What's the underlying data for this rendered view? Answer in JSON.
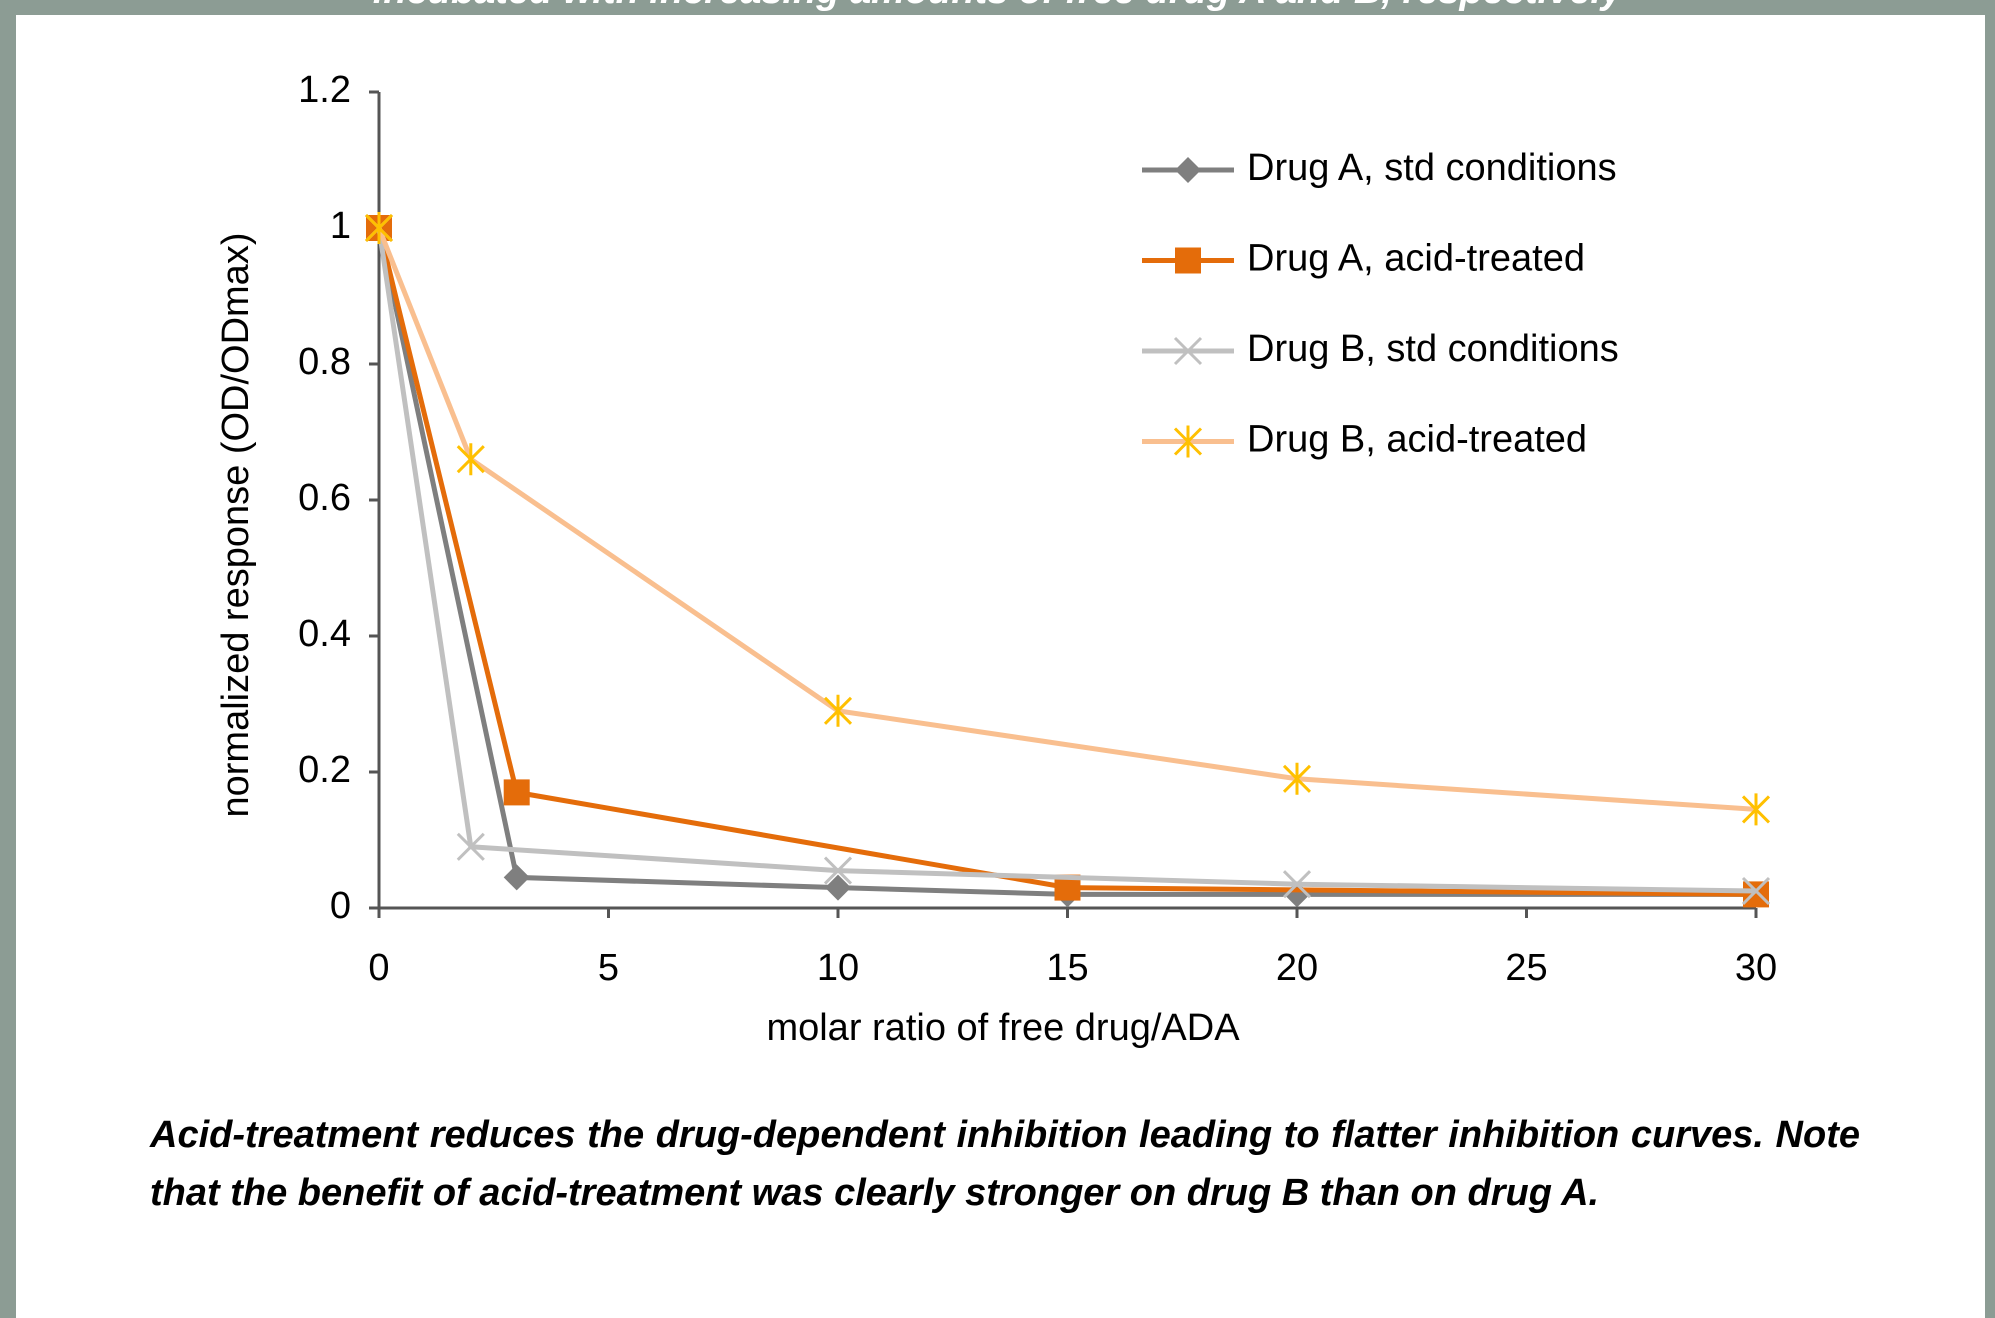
{
  "header": "incubated with increasing amounts of free drug A and B, respectively",
  "chart_data": {
    "type": "line",
    "xlabel": "molar ratio of free drug/ADA",
    "ylabel": "normalized response (OD/ODmax)",
    "xlim": [
      0,
      30
    ],
    "xticks": [
      0,
      5,
      10,
      15,
      20,
      25,
      30
    ],
    "ylim": [
      0,
      1.2
    ],
    "yticks": [
      0,
      0.2,
      0.4,
      0.6,
      0.8,
      1,
      1.2
    ],
    "legend": "upper right",
    "series": [
      {
        "name": "Drug A, std conditions",
        "color": "#7f7f7f",
        "marker": "diamond",
        "marker_color": "#7f7f7f",
        "x": [
          0,
          3,
          10,
          15,
          20,
          30
        ],
        "values": [
          1,
          0.045,
          0.03,
          0.02,
          0.02,
          0.02
        ]
      },
      {
        "name": "Drug A, acid-treated",
        "color": "#e46c0a",
        "marker": "square",
        "marker_color": "#e46c0a",
        "x": [
          0,
          3,
          15,
          30
        ],
        "values": [
          1,
          0.17,
          0.03,
          0.02
        ]
      },
      {
        "name": "Drug B, std conditions",
        "color": "#c0c0c0",
        "marker": "x",
        "marker_color": "#c0c0c0",
        "x": [
          0,
          2,
          10,
          20,
          30
        ],
        "values": [
          1,
          0.09,
          0.055,
          0.035,
          0.025
        ]
      },
      {
        "name": "Drug B, acid-treated",
        "color": "#f9bf8f",
        "marker": "star",
        "marker_color": "#ffc000",
        "x": [
          0,
          2,
          10,
          20,
          30
        ],
        "values": [
          1,
          0.66,
          0.29,
          0.19,
          0.145
        ]
      }
    ]
  },
  "caption": "Acid-treatment reduces the drug-dependent inhibition leading to flatter inhibition curves. Note that the benefit of acid-treatment was clearly stronger on drug B than on drug A."
}
